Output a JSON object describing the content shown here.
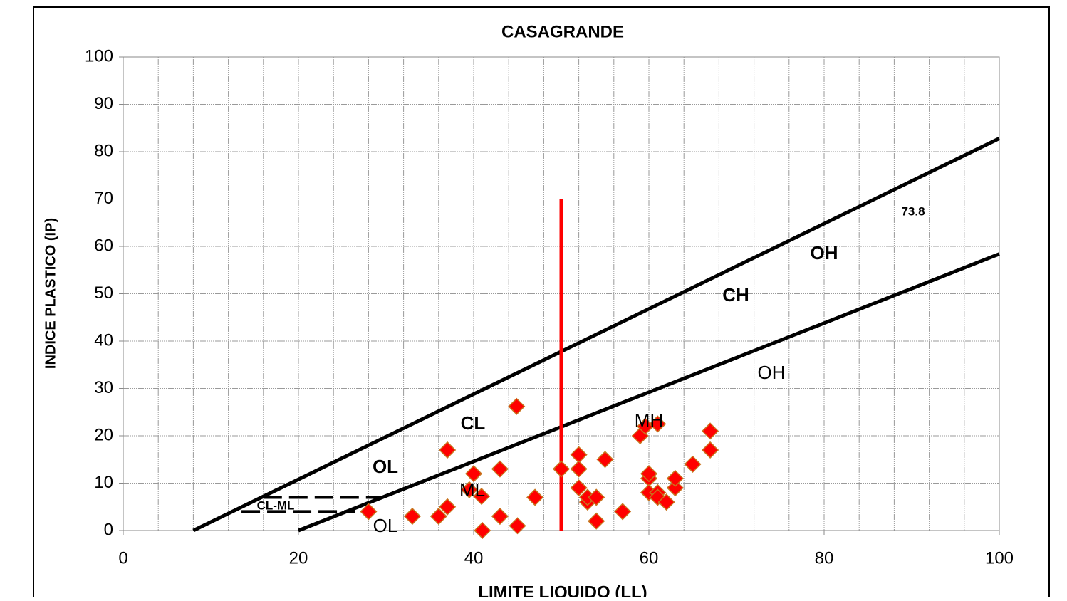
{
  "chart_data": {
    "type": "scatter",
    "title": "CASAGRANDE",
    "xlabel": "LIMITE LIQUIDO (LL)",
    "ylabel": "INDICE PLASTICO (IP)",
    "xlim": [
      0,
      100
    ],
    "ylim": [
      0,
      100
    ],
    "xticks": [
      0,
      20,
      40,
      60,
      80,
      100
    ],
    "yticks": [
      0,
      10,
      20,
      30,
      40,
      50,
      60,
      70,
      80,
      90,
      100
    ],
    "xgrid": [
      0,
      4,
      8,
      12,
      16,
      20,
      24,
      28,
      32,
      36,
      40,
      44,
      48,
      52,
      56,
      60,
      64,
      68,
      72,
      76,
      80,
      84,
      88,
      92,
      96,
      100
    ],
    "grid": true,
    "series": [
      {
        "type": "line",
        "color": "#000000",
        "x": [
          8,
          100
        ],
        "values": [
          0,
          82.8
        ]
      },
      {
        "type": "line",
        "color": "#000000",
        "x": [
          20,
          100
        ],
        "values": [
          0,
          58.4
        ]
      },
      {
        "type": "line",
        "color": "#000000",
        "dashed": true,
        "x": [
          16,
          29.6
        ],
        "values": [
          7,
          7
        ]
      },
      {
        "type": "line",
        "color": "#000000",
        "dashed": true,
        "x": [
          13.5,
          26.5
        ],
        "values": [
          4,
          4
        ]
      },
      {
        "type": "line",
        "color": "#ff0000",
        "x": [
          50,
          50
        ],
        "values": [
          0,
          70
        ]
      },
      {
        "type": "scatter",
        "color": "#ff0000",
        "edgecolor": "#c8741e",
        "x": [
          44.9,
          37,
          40,
          43,
          39.5,
          40.9,
          37,
          36,
          33,
          28,
          41,
          43,
          45,
          47,
          50,
          52,
          52,
          52,
          53,
          53,
          54,
          54,
          55,
          57,
          59,
          59.6,
          61,
          60,
          60,
          60,
          61,
          61,
          62,
          63,
          63,
          65,
          67,
          67
        ],
        "values": [
          26.2,
          17,
          12,
          13,
          8.6,
          7.2,
          5,
          3,
          3,
          4,
          0,
          3,
          1,
          7,
          13,
          16,
          13,
          9,
          6,
          7,
          7,
          2,
          15,
          4,
          20,
          22,
          22.5,
          11,
          12,
          8,
          8,
          7,
          6,
          9,
          11,
          14,
          21,
          17
        ]
      }
    ],
    "annotations": [
      {
        "text": "73.8",
        "bold": true
      },
      {
        "text": "OH",
        "bold": true
      },
      {
        "text": "CH",
        "bold": true
      },
      {
        "text": "OH",
        "bold": false
      },
      {
        "text": "MH",
        "bold": false
      },
      {
        "text": "CL",
        "bold": true
      },
      {
        "text": "OL",
        "bold": true
      },
      {
        "text": "ML",
        "bold": false
      },
      {
        "text": "CL-ML",
        "bold": true
      },
      {
        "text": "OL",
        "bold": false
      }
    ]
  }
}
